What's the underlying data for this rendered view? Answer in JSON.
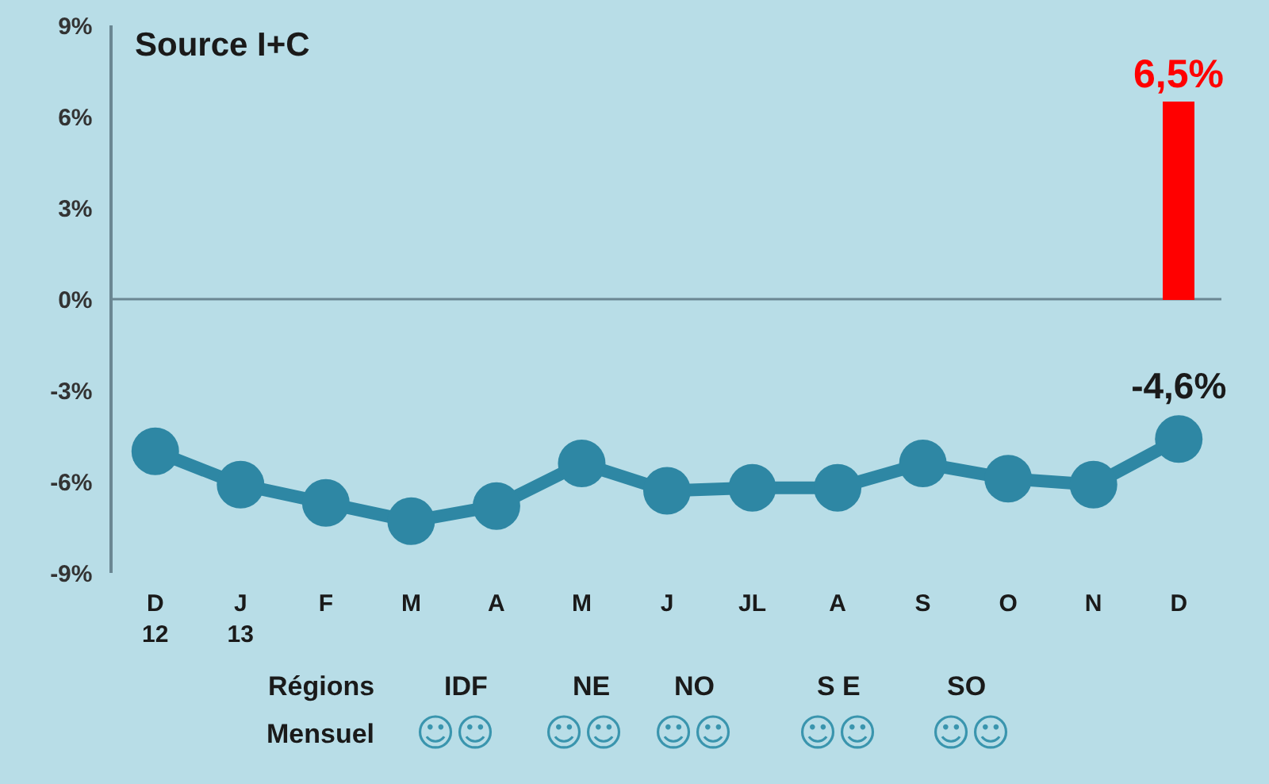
{
  "chart_data": {
    "type": "line",
    "categories": [
      "D\n12",
      "J\n13",
      "F",
      "M",
      "A",
      "M",
      "J",
      "JL",
      "A",
      "S",
      "O",
      "N",
      "D"
    ],
    "series": [
      {
        "type": "bar",
        "color": "#ff0000",
        "values": [
          null,
          null,
          null,
          null,
          null,
          null,
          null,
          null,
          null,
          null,
          null,
          null,
          6.5
        ],
        "value_labels": [
          null,
          null,
          null,
          null,
          null,
          null,
          null,
          null,
          null,
          null,
          null,
          null,
          "6,5%"
        ]
      },
      {
        "color": "#2e87a4",
        "values": [
          -5.0,
          -6.1,
          -6.7,
          -7.3,
          -6.8,
          -5.4,
          -6.3,
          -6.2,
          -6.2,
          -5.4,
          -5.9,
          -6.1,
          -4.6
        ],
        "value_labels": [
          null,
          null,
          null,
          null,
          null,
          null,
          null,
          null,
          null,
          null,
          null,
          null,
          "-4,6%"
        ]
      }
    ],
    "ylim": [
      -9,
      9
    ],
    "yticks": [
      {
        "value": 9,
        "label": "9%"
      },
      {
        "value": 6,
        "label": "6%"
      },
      {
        "value": 3,
        "label": "3%"
      },
      {
        "value": 0,
        "label": "0%"
      },
      {
        "value": -3,
        "label": "-3%"
      },
      {
        "value": -6,
        "label": "-6%"
      },
      {
        "value": -9,
        "label": "-9%"
      }
    ],
    "ref_lines": [
      {
        "axis": "y",
        "value": 0
      }
    ],
    "marker": "circle",
    "line_style": "solid",
    "grid": false,
    "annotations": [
      "Source I+C",
      "Régions",
      "IDF",
      "NE",
      "NO",
      "S E",
      "SO",
      "Mensuel",
      "☺☺",
      "☺☺",
      "☺☺",
      "☺☺",
      "☺☺"
    ]
  }
}
